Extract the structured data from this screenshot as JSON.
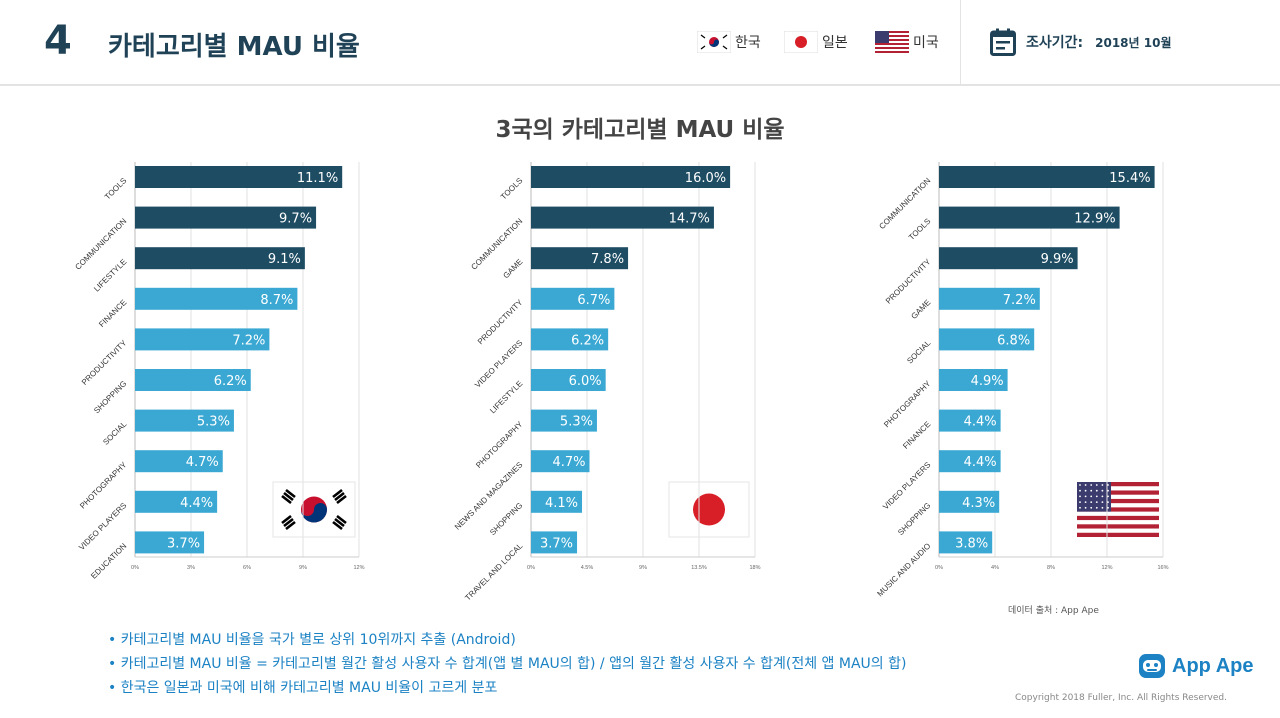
{
  "header": {
    "number": "4",
    "title": "카테고리별 MAU 비율",
    "legend": [
      {
        "label": "한국",
        "flag": "korea"
      },
      {
        "label": "일본",
        "flag": "japan"
      },
      {
        "label": "미국",
        "flag": "usa"
      }
    ],
    "period_label": "조사기간:",
    "period_value": "2018년 10월"
  },
  "chart_title": "3국의 카테고리별 MAU 비율",
  "colors": {
    "dark": "#1d4c63",
    "light": "#3aa8d3",
    "accent": "#1c82c4"
  },
  "chart_data": [
    {
      "type": "bar",
      "orientation": "horizontal",
      "country": "Korea",
      "categories": [
        "TOOLS",
        "COMMUNICATION",
        "LIFESTYLE",
        "FINANCE",
        "PRODUCTIVITY",
        "SHOPPING",
        "SOCIAL",
        "PHOTOGRAPHY",
        "VIDEO PLAYERS",
        "EDUCATION"
      ],
      "values": [
        11.1,
        9.7,
        9.1,
        8.7,
        7.2,
        6.2,
        5.3,
        4.7,
        4.4,
        3.7
      ],
      "labels": [
        "11.1%",
        "9.7%",
        "9.1%",
        "8.7%",
        "7.2%",
        "6.2%",
        "5.3%",
        "4.7%",
        "4.4%",
        "3.7%"
      ],
      "xlim": [
        0,
        12
      ],
      "ticks": [
        0,
        3,
        6,
        9,
        12
      ],
      "tick_labels": [
        "0%",
        "3%",
        "6%",
        "9%",
        "12%"
      ],
      "dark_count": 3
    },
    {
      "type": "bar",
      "orientation": "horizontal",
      "country": "Japan",
      "categories": [
        "TOOLS",
        "COMMUNICATION",
        "GAME",
        "PRODUCTIVITY",
        "VIDEO PLAYERS",
        "LIFESTYLE",
        "PHOTOGRAPHY",
        "NEWS AND MAGAZINES",
        "SHOPPING",
        "TRAVEL AND LOCAL"
      ],
      "values": [
        16.0,
        14.7,
        7.8,
        6.7,
        6.2,
        6.0,
        5.3,
        4.7,
        4.1,
        3.7
      ],
      "labels": [
        "16.0%",
        "14.7%",
        "7.8%",
        "6.7%",
        "6.2%",
        "6.0%",
        "5.3%",
        "4.7%",
        "4.1%",
        "3.7%"
      ],
      "xlim": [
        0,
        18
      ],
      "ticks": [
        0,
        4.5,
        9,
        13.5,
        18
      ],
      "tick_labels": [
        "0%",
        "4.5%",
        "9%",
        "13.5%",
        "18%"
      ],
      "dark_count": 3
    },
    {
      "type": "bar",
      "orientation": "horizontal",
      "country": "USA",
      "categories": [
        "COMMUNICATION",
        "TOOLS",
        "PRODUCTIVITY",
        "GAME",
        "SOCIAL",
        "PHOTOGRAPHY",
        "FINANCE",
        "VIDEO PLAYERS",
        "SHOPPING",
        "MUSIC AND AUDIO"
      ],
      "values": [
        15.4,
        12.9,
        9.9,
        7.2,
        6.8,
        4.9,
        4.4,
        4.4,
        4.3,
        3.8
      ],
      "labels": [
        "15.4%",
        "12.9%",
        "9.9%",
        "7.2%",
        "6.8%",
        "4.9%",
        "4.4%",
        "4.4%",
        "4.3%",
        "3.8%"
      ],
      "xlim": [
        0,
        16
      ],
      "ticks": [
        0,
        4,
        8,
        12,
        16
      ],
      "tick_labels": [
        "0%",
        "4%",
        "8%",
        "12%",
        "16%"
      ],
      "dark_count": 3
    }
  ],
  "source": "데이터 출처 :  App Ape",
  "notes": [
    "• 카테고리별 MAU 비율을 국가 별로 상위 10위까지 추출 (Android)",
    "• 카테고리별 MAU 비율 = 카테고리별 월간 활성 사용자 수 합계(앱 별 MAU의 합) / 앱의 월간 활성 사용자 수 합계(전체 앱 MAU의 합)",
    "• 한국은 일본과 미국에 비해 카테고리별 MAU 비율이 고르게 분포"
  ],
  "logo_text": "App Ape",
  "copyright": "Copyright 2018 Fuller, Inc. All Rights Reserved."
}
